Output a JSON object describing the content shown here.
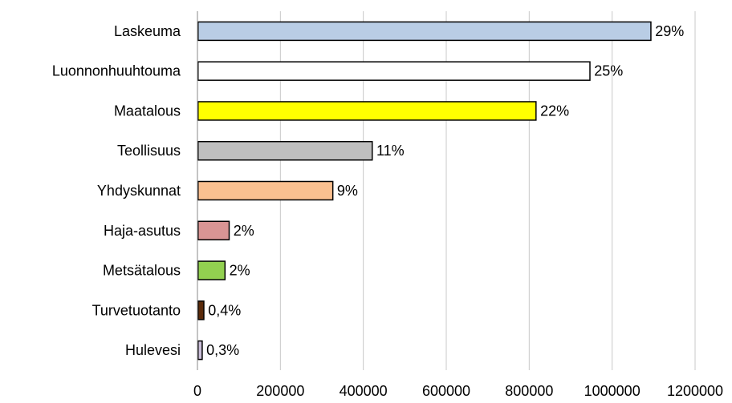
{
  "chart_data": {
    "type": "bar",
    "orientation": "horizontal",
    "title": "",
    "xlabel": "",
    "ylabel": "",
    "xlim": [
      0,
      1200000
    ],
    "x_ticks": [
      0,
      200000,
      400000,
      600000,
      800000,
      1000000,
      1200000
    ],
    "x_tick_labels": [
      "0",
      "200000",
      "400000",
      "600000",
      "800000",
      "1000000",
      "1200000"
    ],
    "grid": "vertical",
    "legend": "none",
    "categories": [
      "Laskeuma",
      "Luonnonhuuhtouma",
      "Maatalous",
      "Teollisuus",
      "Yhdyskunnat",
      "Haja-asutus",
      "Metsätalous",
      "Turvetuotanto",
      "Hulevesi"
    ],
    "values": [
      1092000,
      945000,
      815000,
      420000,
      325000,
      75000,
      65000,
      14000,
      10000
    ],
    "data_labels": [
      "29%",
      "25%",
      "22%",
      "11%",
      "9%",
      "2%",
      "2%",
      "0,4%",
      "0,3%"
    ],
    "colors": [
      "#b9cde5",
      "#ffffff",
      "#ffff00",
      "#bfbfbf",
      "#fac090",
      "#d99594",
      "#92d050",
      "#5a2a0a",
      "#ccc0da"
    ]
  }
}
